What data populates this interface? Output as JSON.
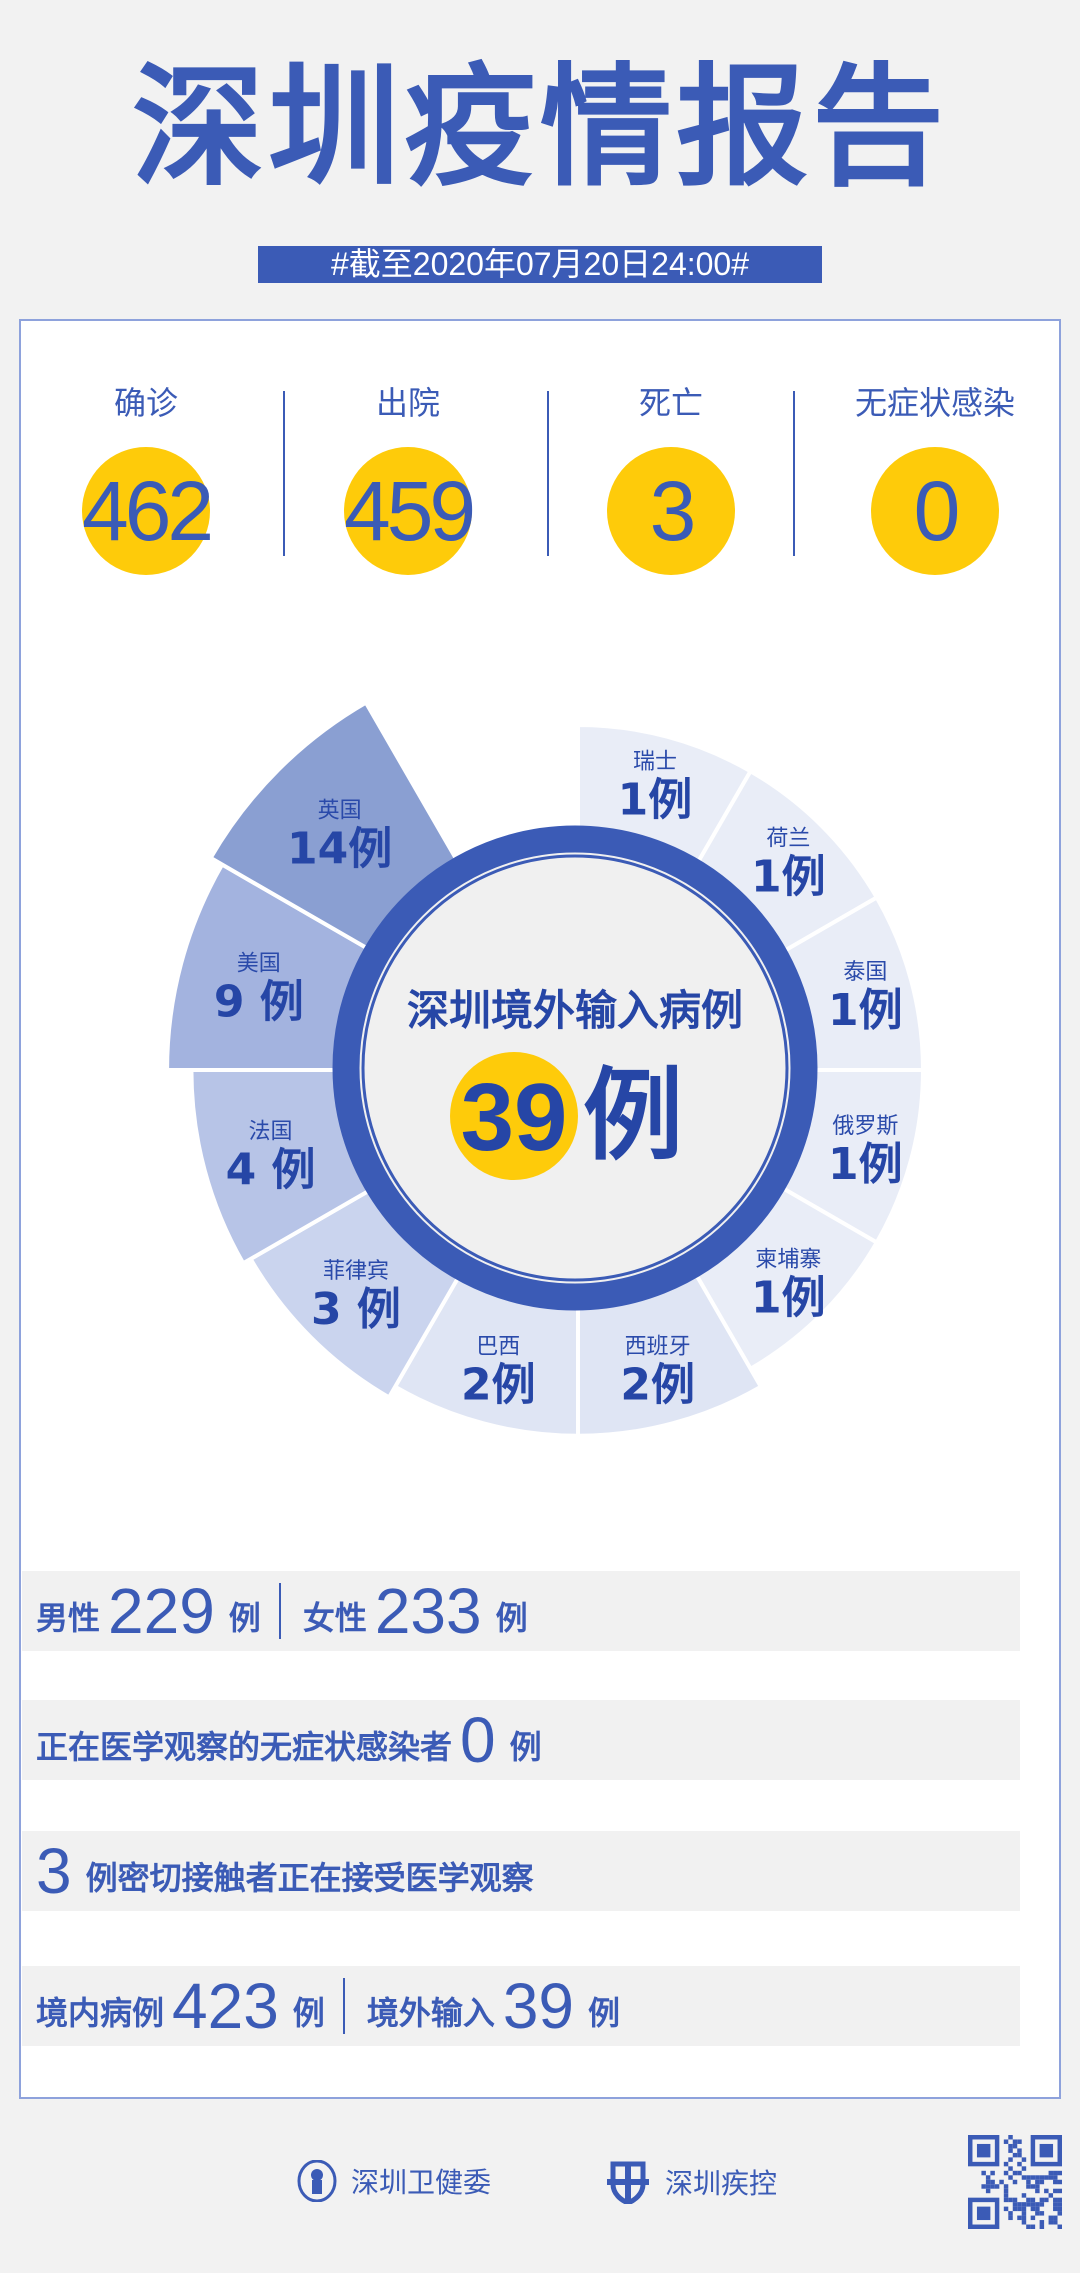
{
  "header": {
    "title": "深圳疫情报告",
    "date": "#截至2020年07月20日24:00#"
  },
  "stats": [
    {
      "label": "确诊",
      "value": "462"
    },
    {
      "label": "出院",
      "value": "459"
    },
    {
      "label": "死亡",
      "value": "3"
    },
    {
      "label": "无症状感染",
      "value": "0"
    }
  ],
  "colors": {
    "primary": "#3b5bb6",
    "accent": "#fecb0a",
    "panel": "#f1f1f1"
  },
  "imported": {
    "title": "深圳境外输入病例",
    "total": "39",
    "unit": "例",
    "countries": [
      {
        "name": "瑞士",
        "count": 1,
        "label": "1例",
        "color": "#e9edf7"
      },
      {
        "name": "荷兰",
        "count": 1,
        "label": "1例",
        "color": "#e9edf7"
      },
      {
        "name": "泰国",
        "count": 1,
        "label": "1例",
        "color": "#e9edf7"
      },
      {
        "name": "俄罗斯",
        "count": 1,
        "label": "1例",
        "color": "#e9edf7"
      },
      {
        "name": "柬埔寨",
        "count": 1,
        "label": "1例",
        "color": "#e9edf7"
      },
      {
        "name": "西班牙",
        "count": 2,
        "label": "2例",
        "color": "#dfe5f4"
      },
      {
        "name": "巴西",
        "count": 2,
        "label": "2例",
        "color": "#dfe5f4"
      },
      {
        "name": "菲律宾",
        "count": 3,
        "label": "3 例",
        "color": "#cad4ee"
      },
      {
        "name": "法国",
        "count": 4,
        "label": "4 例",
        "color": "#b7c4e7"
      },
      {
        "name": "美国",
        "count": 9,
        "label": "9 例",
        "color": "#a3b3df"
      },
      {
        "name": "英国",
        "count": 14,
        "label": "14例",
        "color": "#8a9fd2"
      }
    ]
  },
  "bars": {
    "gender": {
      "male_label": "男性",
      "male": "229",
      "female_label": "女性",
      "female": "233",
      "unit": "例"
    },
    "asymptomatic": {
      "text": "正在医学观察的无症状感染者",
      "value": "0",
      "unit": "例"
    },
    "contacts": {
      "value": "3",
      "text": "例密切接触者正在接受医学观察"
    },
    "origin": {
      "local_label": "境内病例",
      "local": "423",
      "imported_label": "境外输入",
      "imported": "39",
      "unit": "例"
    }
  },
  "footer": {
    "org1": "深圳卫健委",
    "org2": "深圳疾控"
  }
}
